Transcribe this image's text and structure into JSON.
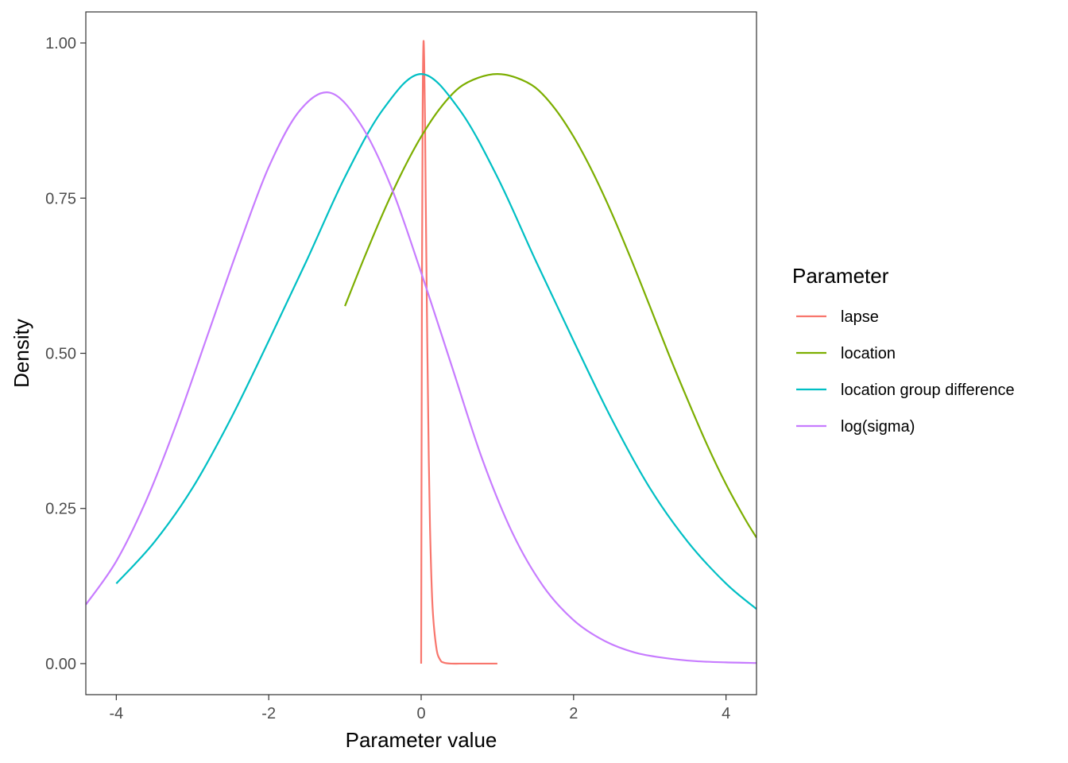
{
  "chart_data": {
    "type": "line",
    "title": "",
    "xlabel": "Parameter value",
    "ylabel": "Density",
    "xlim": [
      -4.4,
      4.4
    ],
    "ylim": [
      -0.05,
      1.05
    ],
    "x_ticks": [
      -4,
      -2,
      0,
      2,
      4
    ],
    "x_tick_labels": [
      "-4",
      "-2",
      "0",
      "2",
      "4"
    ],
    "y_ticks": [
      0,
      0.25,
      0.5,
      0.75,
      1.0
    ],
    "y_tick_labels": [
      "0.00",
      "0.25",
      "0.50",
      "0.75",
      "1.00"
    ],
    "grid": false,
    "legend": {
      "title": "Parameter",
      "placement": "right"
    },
    "series": [
      {
        "name": "lapse",
        "color": "#F8766D",
        "x": [
          0.0,
          0.01,
          0.02,
          0.03,
          0.04,
          0.05,
          0.06,
          0.08,
          0.1,
          0.12,
          0.15,
          0.2,
          0.25,
          0.3,
          0.4,
          0.5,
          0.6,
          0.7,
          0.8,
          0.9,
          1.0
        ],
        "y": [
          0.0,
          0.6,
          0.9,
          1.0,
          0.97,
          0.88,
          0.75,
          0.52,
          0.33,
          0.2,
          0.09,
          0.025,
          0.006,
          0.0015,
          0.0,
          0.0,
          0.0,
          0.0,
          0.0,
          0.0,
          0.0
        ]
      },
      {
        "name": "location",
        "color": "#7CAE00",
        "x": [
          -1.0,
          -0.75,
          -0.5,
          -0.25,
          0.0,
          0.25,
          0.5,
          0.75,
          1.0,
          1.25,
          1.5,
          1.75,
          2.0,
          2.25,
          2.5,
          2.75,
          3.0,
          3.25,
          3.5,
          3.75,
          4.0,
          4.25,
          4.4
        ],
        "y": [
          0.576,
          0.653,
          0.726,
          0.792,
          0.849,
          0.895,
          0.928,
          0.944,
          0.95,
          0.944,
          0.928,
          0.895,
          0.849,
          0.792,
          0.726,
          0.653,
          0.576,
          0.498,
          0.424,
          0.353,
          0.289,
          0.233,
          0.203
        ]
      },
      {
        "name": "location group difference",
        "color": "#00BFC4",
        "x": [
          -4.0,
          -3.5,
          -3.0,
          -2.5,
          -2.0,
          -1.5,
          -1.0,
          -0.5,
          0.0,
          0.5,
          1.0,
          1.5,
          2.0,
          2.5,
          3.0,
          3.5,
          4.0,
          4.4
        ],
        "y": [
          0.129,
          0.196,
          0.283,
          0.394,
          0.52,
          0.65,
          0.784,
          0.893,
          0.95,
          0.893,
          0.784,
          0.65,
          0.52,
          0.394,
          0.283,
          0.196,
          0.129,
          0.088
        ]
      },
      {
        "name": "log(sigma)",
        "color": "#C77CFF",
        "x": [
          -4.4,
          -4.0,
          -3.6,
          -3.2,
          -2.8,
          -2.4,
          -2.0,
          -1.6,
          -1.2,
          -0.8,
          -0.4,
          0.0,
          0.4,
          0.8,
          1.2,
          1.6,
          2.0,
          2.4,
          2.8,
          3.2,
          3.6,
          4.0,
          4.4
        ],
        "y": [
          0.095,
          0.165,
          0.265,
          0.39,
          0.53,
          0.67,
          0.8,
          0.89,
          0.92,
          0.87,
          0.77,
          0.63,
          0.48,
          0.33,
          0.21,
          0.125,
          0.07,
          0.037,
          0.018,
          0.009,
          0.004,
          0.002,
          0.001
        ]
      }
    ]
  }
}
